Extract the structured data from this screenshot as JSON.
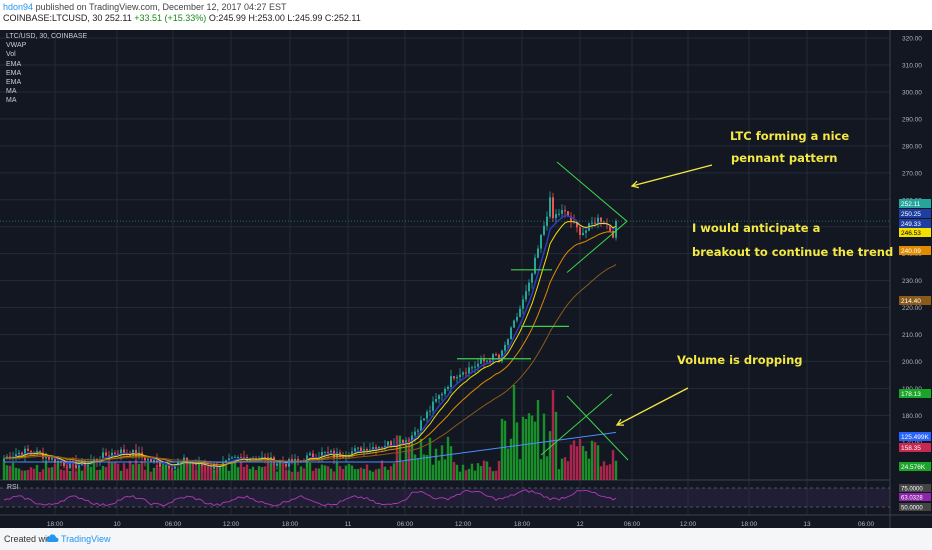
{
  "header": {
    "author": "hdon94",
    "published_text": "published on TradingView.com, December 12, 2017 04:27 EST",
    "symbol_line": "COINBASE:LTCUSD, 30  252.11",
    "change": "+33.51 (+15.33%)",
    "ohlc": "O:245.99  H:253.00  L:245.99  C:252.11"
  },
  "legend": {
    "symbol": "LTC/USD, 30, COINBASE",
    "indicators": [
      "VWAP",
      "Vol",
      "EMA",
      "EMA",
      "EMA",
      "MA",
      "MA"
    ]
  },
  "annotations": {
    "pennant_1": "LTC forming a nice",
    "pennant_2": "pennant pattern",
    "breakout_1": "I would anticipate a",
    "breakout_2": "breakout to continue the trend",
    "volume": "Volume is dropping"
  },
  "footer": {
    "created_with": "Created with",
    "brand": "TradingView"
  },
  "colors": {
    "background": "#131722",
    "up": "#26a69a",
    "down": "#ef5350",
    "vol_up": "#1aa52a",
    "vol_down": "#c62852",
    "annotation": "#f4e842",
    "pattern_lines": "#3cd24b"
  },
  "chart_data": {
    "type": "candlestick",
    "symbol": "LTC/USD",
    "interval": "30",
    "exchange": "COINBASE",
    "ylim": [
      156,
      323
    ],
    "y_ticks": [
      170,
      180,
      190,
      200,
      210,
      220,
      230,
      240,
      250,
      260,
      270,
      280,
      290,
      300,
      310,
      320
    ],
    "x_tick_labels": [
      "18:00",
      "10",
      "06:00",
      "12:00",
      "18:00",
      "11",
      "06:00",
      "12:00",
      "18:00",
      "12",
      "06:00",
      "12:00",
      "18:00",
      "13",
      "06:00"
    ],
    "last_price": 252.11,
    "price_labels": [
      {
        "value": "252.11",
        "color": "#26a69a"
      },
      {
        "value": "250.25",
        "color": "#1f3fa0"
      },
      {
        "value": "249.33",
        "color": "#1f3fa0"
      },
      {
        "value": "246.53",
        "color": "#f5e000"
      },
      {
        "value": "240.09",
        "color": "#e08a00"
      },
      {
        "value": "214.40",
        "color": "#8a5a1a"
      },
      {
        "value": "178.13",
        "color": "#1aa52a"
      },
      {
        "value": "125.499K",
        "color": "#2962ff"
      },
      {
        "value": "158.35",
        "color": "#c62852"
      },
      {
        "value": "24.576K",
        "color": "#1aa52a"
      }
    ],
    "pattern": {
      "type": "pennant",
      "upper_start": 274,
      "upper_end": 252,
      "lower_start": 233,
      "lower_end": 252
    },
    "horizontal_levels": [
      234,
      213,
      201
    ],
    "rsi": {
      "label": "RSI",
      "levels": [
        "75.0000",
        "63.0328",
        "50.0000"
      ],
      "current": 63.0328
    },
    "volume": {
      "last": "24.576K",
      "ma": "125.499K"
    }
  }
}
